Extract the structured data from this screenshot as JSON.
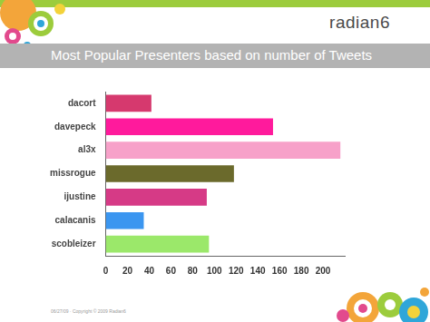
{
  "slide": {
    "logo": "radian6",
    "footer": "06/27/09 · Copyright © 2009 Radian6"
  },
  "chart_data": {
    "type": "bar",
    "orientation": "horizontal",
    "title": "Most Popular Presenters based on number of Tweets",
    "categories": [
      "dacort",
      "davepeck",
      "al3x",
      "missrogue",
      "ijustine",
      "calacanis",
      "scobleizer"
    ],
    "values": [
      42,
      154,
      216,
      118,
      93,
      35,
      95
    ],
    "colors": [
      "#d6396e",
      "#ff1a9c",
      "#f7a1c9",
      "#6b6a2c",
      "#d63a86",
      "#3b96f0",
      "#9be86a"
    ],
    "xlim": [
      0,
      220
    ],
    "xticks": [
      0,
      20,
      40,
      60,
      80,
      100,
      120,
      140,
      160,
      180,
      200
    ],
    "grid": false,
    "legend": "none"
  }
}
